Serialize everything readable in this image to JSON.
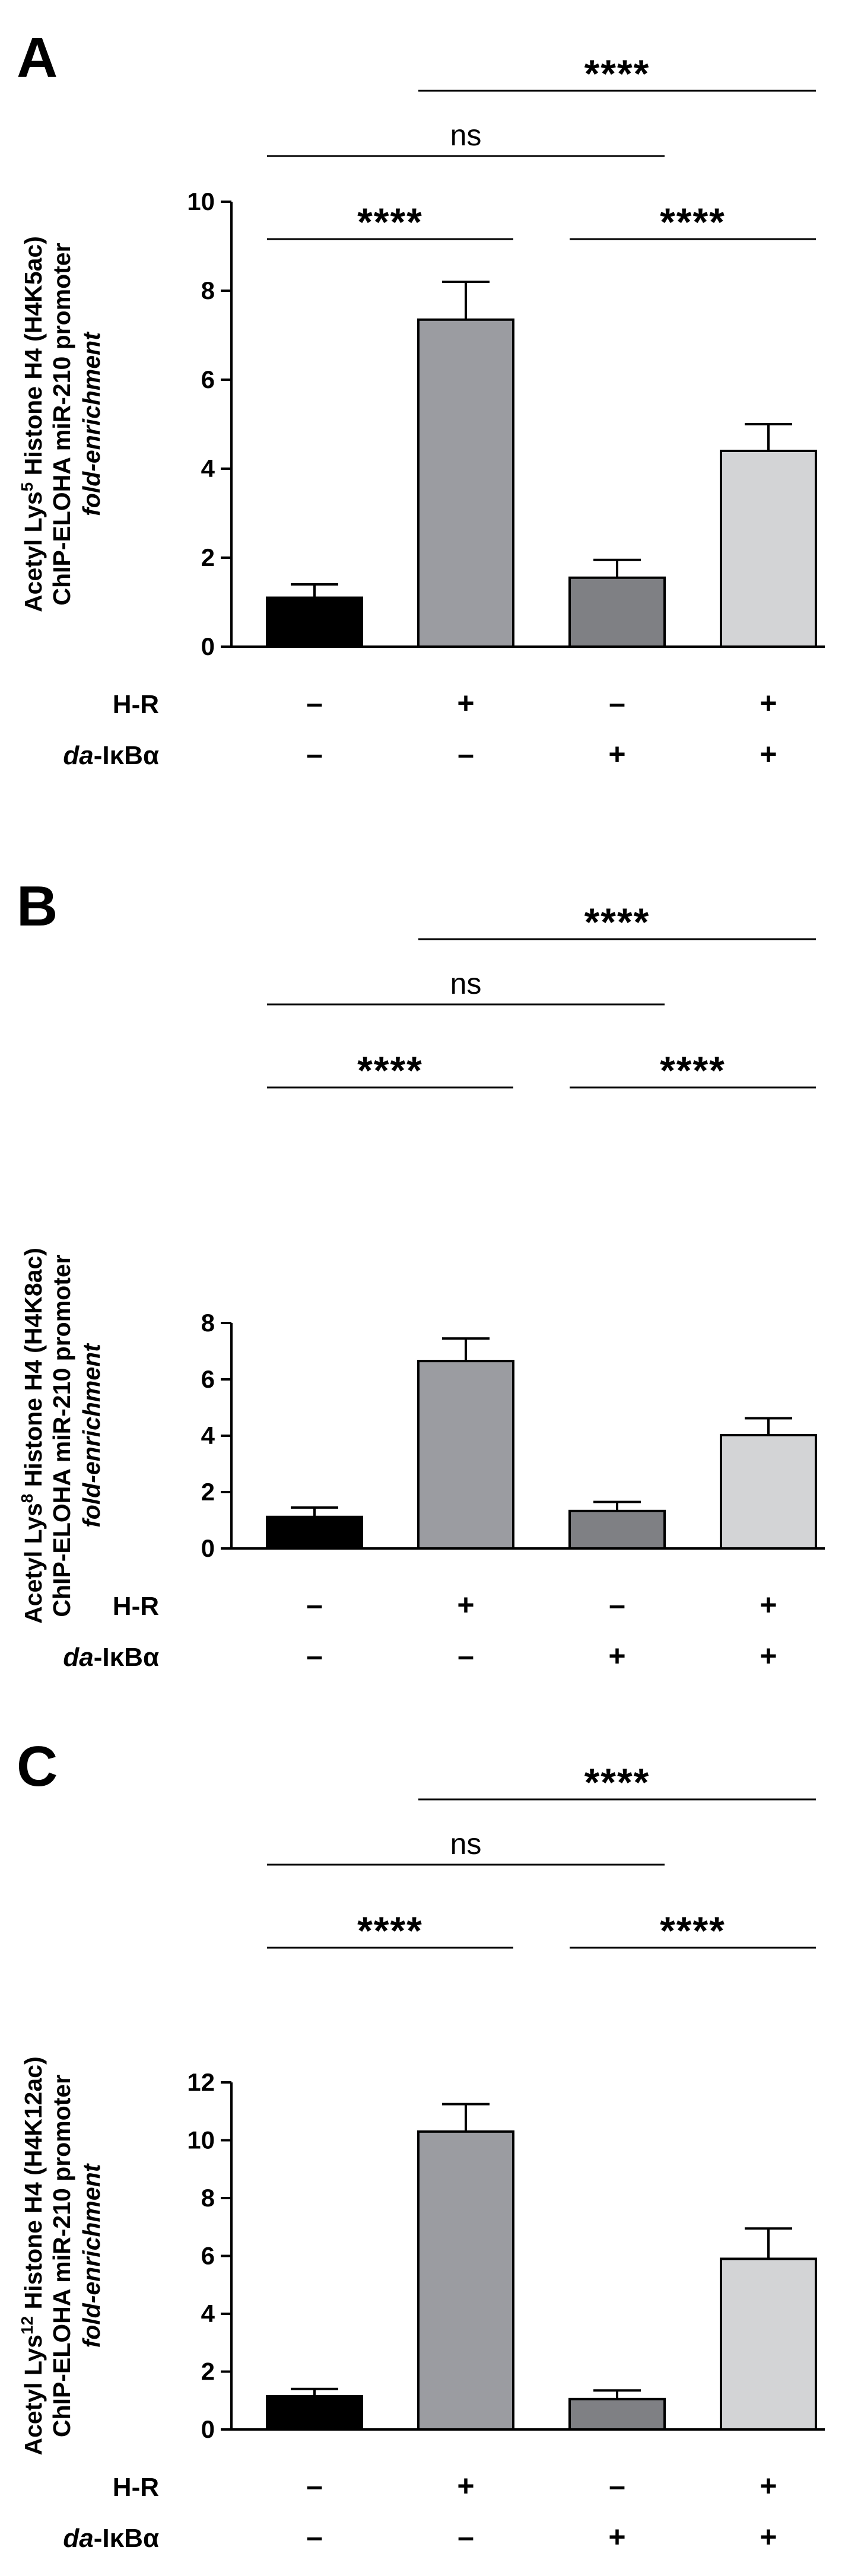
{
  "chart_data": [
    {
      "type": "bar",
      "panel_label": "A",
      "ylabel_line1_pre": "Acetyl Lys",
      "ylabel_line1_sup": "5",
      "ylabel_line1_post": " Histone H4 (H4K5ac)",
      "ylabel_line2": "ChIP-ELOHA  miR-210 promoter",
      "ylabel_line3": "fold-enrichment",
      "ylim": [
        0,
        10
      ],
      "yticks": [
        "0",
        "2",
        "4",
        "6",
        "8",
        "10"
      ],
      "values": [
        1.1,
        7.35,
        1.55,
        4.4
      ],
      "errors": [
        0.3,
        0.85,
        0.4,
        0.6
      ],
      "bar_colors": [
        "#000000",
        "#9b9ca1",
        "#7f8084",
        "#d3d4d6"
      ],
      "conditions": [
        {
          "label": "H-R",
          "values": [
            "–",
            "+",
            "–",
            "+"
          ]
        },
        {
          "label_italic": "da",
          "label_rest": "-IκBα",
          "values": [
            "–",
            "–",
            "+",
            "+"
          ]
        }
      ],
      "comparisons": [
        {
          "from": 2,
          "to": 4,
          "label": "****",
          "level": "top"
        },
        {
          "from": 1,
          "to": 3,
          "label": "ns",
          "level": "mid"
        },
        {
          "from": 1,
          "to": 2,
          "label": "****",
          "level": "low"
        },
        {
          "from": 3,
          "to": 4,
          "label": "****",
          "level": "low"
        }
      ]
    },
    {
      "type": "bar",
      "panel_label": "B",
      "ylabel_line1_pre": "Acetyl Lys",
      "ylabel_line1_sup": "8",
      "ylabel_line1_post": " Histone H4 (H4K8ac)",
      "ylabel_line2": "ChIP-ELOHA  miR-210 promoter",
      "ylabel_line3": "fold-enrichment",
      "ylim": [
        0,
        8
      ],
      "yticks": [
        "0",
        "2",
        "4",
        "6",
        "8"
      ],
      "values": [
        1.12,
        6.65,
        1.33,
        4.02
      ],
      "errors": [
        0.33,
        0.8,
        0.32,
        0.6
      ],
      "bar_colors": [
        "#000000",
        "#9b9ca1",
        "#7f8084",
        "#d3d4d6"
      ],
      "conditions": [
        {
          "label": "H-R",
          "values": [
            "–",
            "+",
            "–",
            "+"
          ]
        },
        {
          "label_italic": "da",
          "label_rest": "-IκBα",
          "values": [
            "–",
            "–",
            "+",
            "+"
          ]
        }
      ],
      "comparisons": [
        {
          "from": 2,
          "to": 4,
          "label": "****",
          "level": "top"
        },
        {
          "from": 1,
          "to": 3,
          "label": "ns",
          "level": "mid"
        },
        {
          "from": 1,
          "to": 2,
          "label": "****",
          "level": "low"
        },
        {
          "from": 3,
          "to": 4,
          "label": "****",
          "level": "low"
        }
      ]
    },
    {
      "type": "bar",
      "panel_label": "C",
      "ylabel_line1_pre": "Acetyl Lys",
      "ylabel_line1_sup": "12",
      "ylabel_line1_post": " Histone H4 (H4K12ac)",
      "ylabel_line2": "ChIP-ELOHA  miR-210 promoter",
      "ylabel_line3": "fold-enrichment",
      "ylim": [
        0,
        12
      ],
      "yticks": [
        "0",
        "2",
        "4",
        "6",
        "8",
        "10",
        "12"
      ],
      "values": [
        1.15,
        10.3,
        1.05,
        5.9
      ],
      "errors": [
        0.25,
        0.95,
        0.3,
        1.05
      ],
      "bar_colors": [
        "#000000",
        "#9b9ca1",
        "#7f8084",
        "#d3d4d6"
      ],
      "conditions": [
        {
          "label": "H-R",
          "values": [
            "–",
            "+",
            "–",
            "+"
          ]
        },
        {
          "label_italic": "da",
          "label_rest": "-IκBα",
          "values": [
            "–",
            "–",
            "+",
            "+"
          ]
        }
      ],
      "comparisons": [
        {
          "from": 2,
          "to": 4,
          "label": "****",
          "level": "top"
        },
        {
          "from": 1,
          "to": 3,
          "label": "ns",
          "level": "mid"
        },
        {
          "from": 1,
          "to": 2,
          "label": "****",
          "level": "low"
        },
        {
          "from": 3,
          "to": 4,
          "label": "****",
          "level": "low"
        }
      ]
    }
  ]
}
